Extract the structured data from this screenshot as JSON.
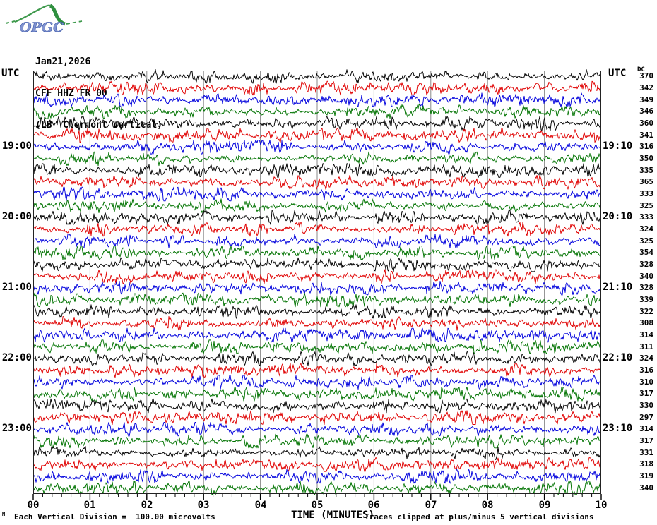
{
  "header": {
    "logo_text": "OPGC",
    "date": "Jan21,2026",
    "station": "CFF HHZ FR 00",
    "location": "(LB  Clermont Vertical)"
  },
  "left_axis": {
    "header": "UTC",
    "hour_labels": [
      {
        "row": 6,
        "label": "19:00"
      },
      {
        "row": 12,
        "label": "20:00"
      },
      {
        "row": 18,
        "label": "21:00"
      },
      {
        "row": 24,
        "label": "22:00"
      },
      {
        "row": 30,
        "label": "23:00"
      }
    ]
  },
  "right_axis": {
    "header": "UTC",
    "dc_header": "DC",
    "hour_labels": [
      {
        "row": 6,
        "label": "19:10"
      },
      {
        "row": 12,
        "label": "20:10"
      },
      {
        "row": 18,
        "label": "21:10"
      },
      {
        "row": 24,
        "label": "22:10"
      },
      {
        "row": 30,
        "label": "23:10"
      }
    ]
  },
  "x_axis": {
    "label": "TIME (MINUTES)"
  },
  "footer": {
    "left": "Each Vertical Division =  100.00 microvolts",
    "right": "Traces clipped at plus/minus 5 vertical divisions",
    "corner_mark": "M"
  },
  "chart_data": {
    "type": "line",
    "subtype": "helicorder-seismogram",
    "title": "CFF HHZ FR 00 (LB Clermont Vertical) Jan21,2026",
    "xlabel": "TIME (MINUTES)",
    "x_range_minutes": [
      0,
      10
    ],
    "x_tick_labels": [
      "00",
      "01",
      "02",
      "03",
      "04",
      "05",
      "06",
      "07",
      "08",
      "09",
      "10"
    ],
    "minor_ticks_per_major": 6,
    "rows": 36,
    "minutes_per_row": 10,
    "trace_colors_cycle": [
      "#000000",
      "#e00000",
      "#0000dd",
      "#007300"
    ],
    "grid_color": "#8a8a8a",
    "border_color": "#222222",
    "dc_values": [
      370,
      342,
      349,
      346,
      360,
      341,
      316,
      350,
      335,
      365,
      333,
      325,
      333,
      324,
      325,
      354,
      328,
      340,
      328,
      339,
      322,
      308,
      314,
      311,
      324,
      316,
      310,
      317,
      330,
      297,
      314,
      317,
      331,
      318,
      319,
      340
    ],
    "row_hour_marks": [
      {
        "row": 6,
        "start": "19:00",
        "end": "19:10"
      },
      {
        "row": 12,
        "start": "20:00",
        "end": "20:10"
      },
      {
        "row": 18,
        "start": "21:00",
        "end": "21:10"
      },
      {
        "row": 24,
        "start": "22:00",
        "end": "22:10"
      },
      {
        "row": 30,
        "start": "23:00",
        "end": "23:10"
      }
    ],
    "scale_note": "Each Vertical Division =  100.00 microvolts",
    "clip_note": "Traces clipped at plus/minus 5 vertical divisions"
  }
}
